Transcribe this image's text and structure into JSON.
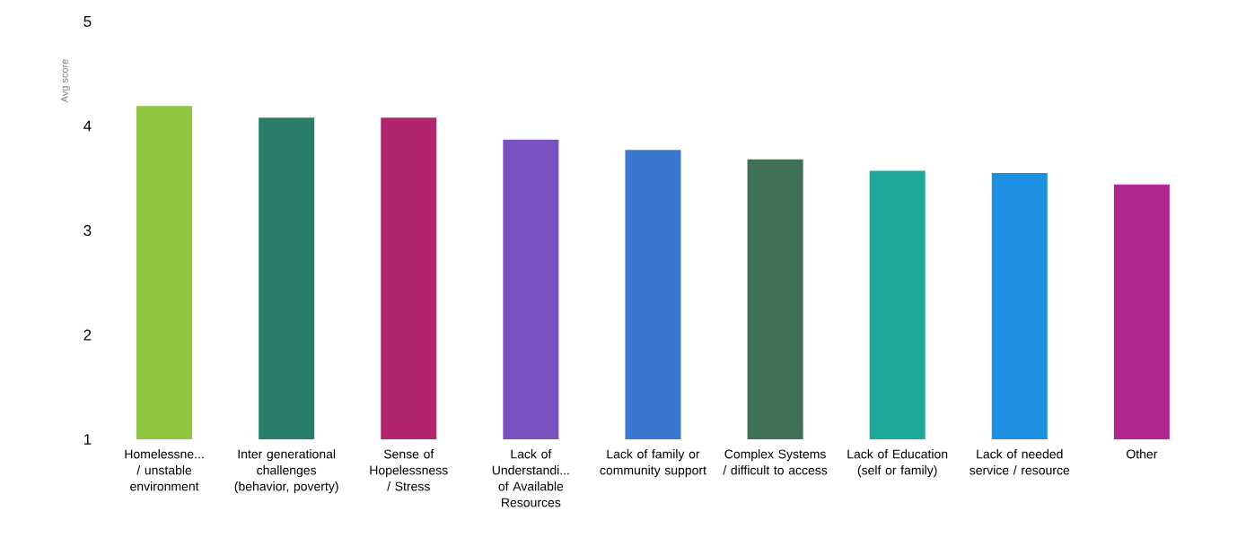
{
  "chart_data": {
    "type": "bar",
    "ylabel": "Avg score",
    "categories": [
      "Homelessne... / unstable environment",
      "Inter generational challenges (behavior, poverty)",
      "Sense of Hopelessness / Stress",
      "Lack of Understandi... of Available Resources",
      "Lack of family or community support",
      "Complex Systems / difficult to access",
      "Lack of Education (self or family)",
      "Lack of needed service / resource",
      "Other"
    ],
    "values": [
      4.19,
      4.08,
      4.08,
      3.87,
      3.77,
      3.68,
      3.57,
      3.55,
      3.44
    ],
    "colors": [
      "#8dc63f",
      "#2a7f6a",
      "#b0256b",
      "#7a52c0",
      "#3a77d0",
      "#3f6f55",
      "#1fa99a",
      "#1d8fe0",
      "#b0288f"
    ],
    "ylim": [
      1,
      5
    ],
    "yticks": [
      1,
      2,
      3,
      4,
      5
    ],
    "grid": false
  }
}
